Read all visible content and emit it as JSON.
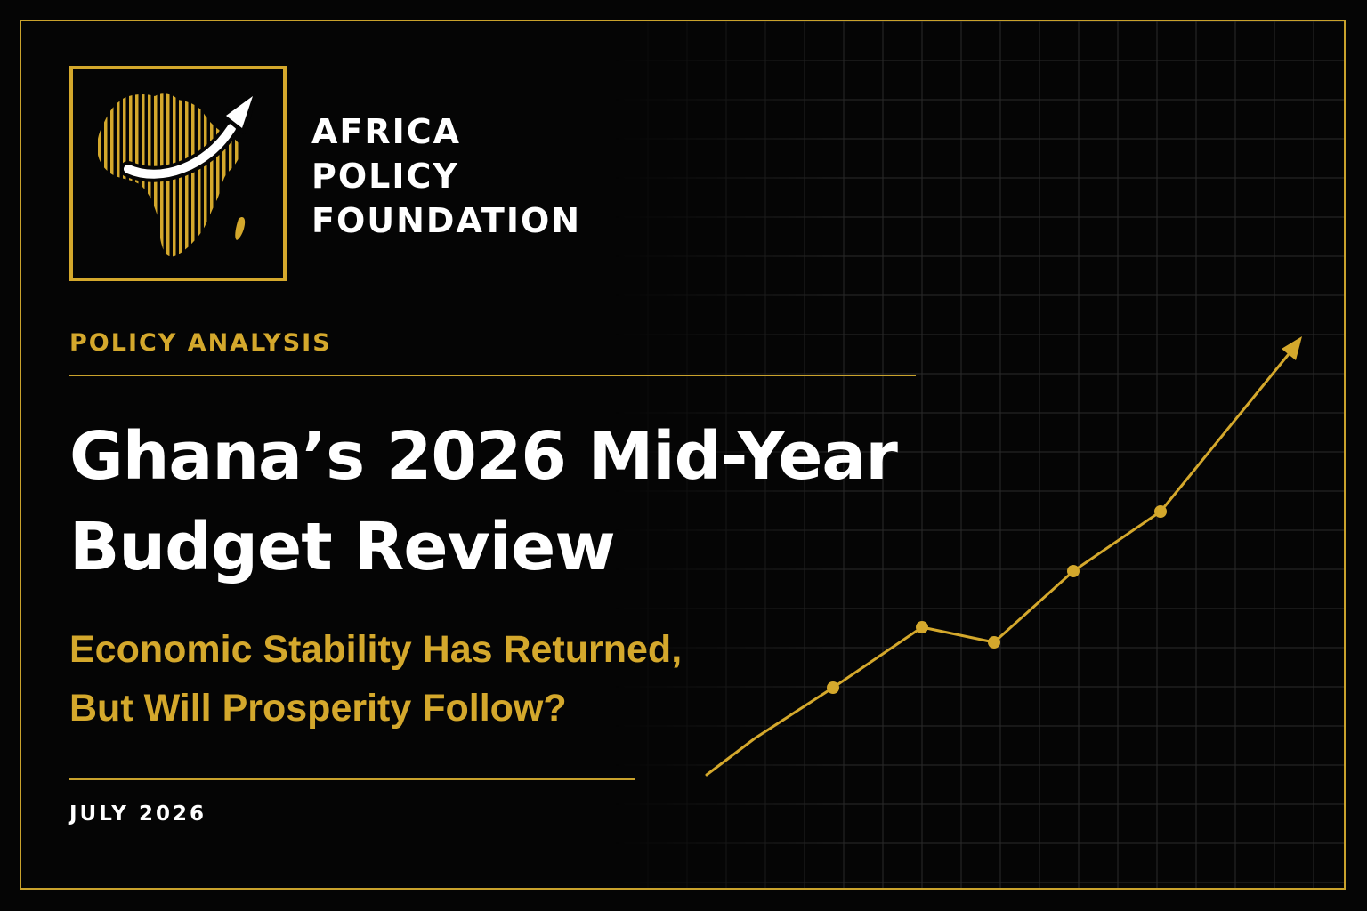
{
  "brand": {
    "name_lines": [
      "AFRICA",
      "POLICY",
      "FOUNDATION"
    ],
    "logo_icon": "africa-map-upward-arrow-icon",
    "gold": "#d4a82c",
    "background": "#050505",
    "text": "#ffffff"
  },
  "kicker": "POLICY ANALYSIS",
  "headline_lines": [
    "Ghana’s 2026 Mid-Year",
    "Budget Review"
  ],
  "subhead_lines": [
    "Economic Stability Has Returned,",
    "But Will Prosperity Follow?"
  ],
  "date": "JULY 2026",
  "trend_graphic": {
    "icon": "upward-trend-line-icon"
  }
}
